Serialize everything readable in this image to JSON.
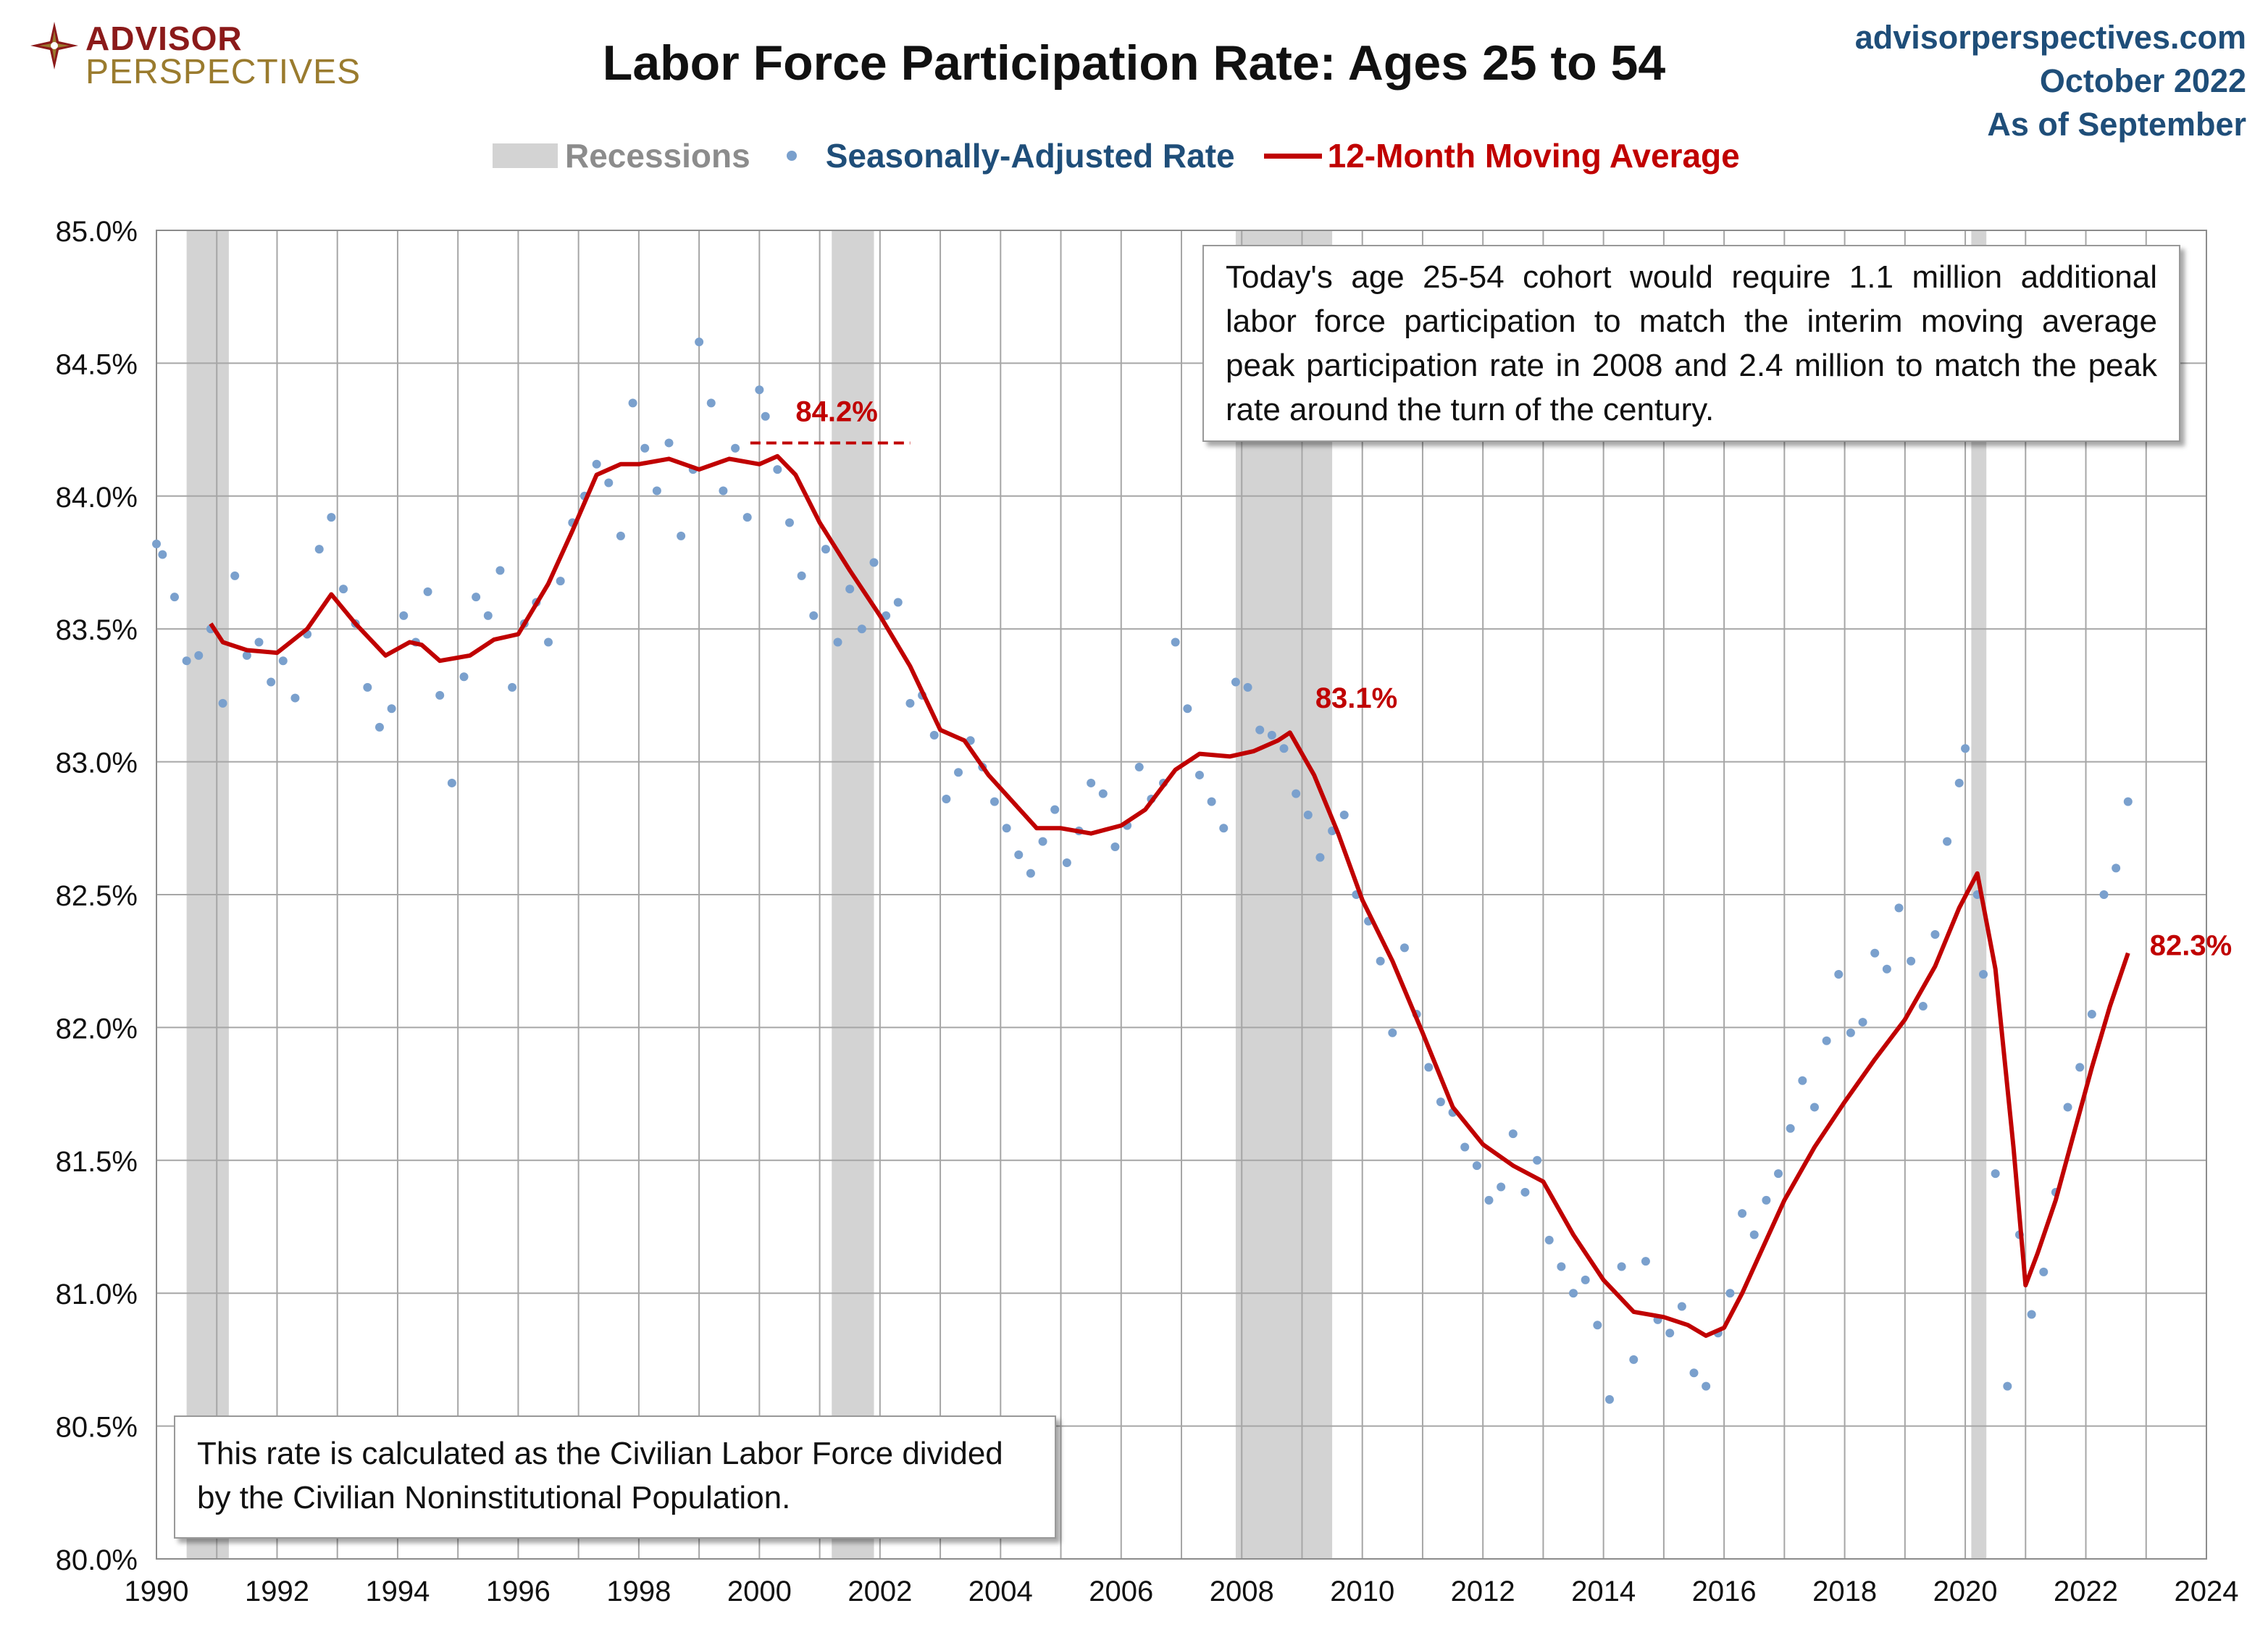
{
  "header": {
    "logo_top": "ADVISOR",
    "logo_bottom": "PERSPECTIVES",
    "title": "Labor Force Participation Rate: Ages 25 to 54",
    "source_line1": "advisorperspectives.com",
    "source_line2": "October 2022",
    "source_line3": "As of September"
  },
  "legend": {
    "recessions": "Recessions",
    "seasonal": "Seasonally-Adjusted Rate",
    "moving_avg": "12-Month Moving Average"
  },
  "notes": {
    "top_right": "Today's age 25-54 cohort would require 1.1 million additional labor force participation to match the interim moving average peak participation rate in 2008 and 2.4 million to match the peak rate around the turn of the century.",
    "bottom_left": "This rate is calculated as the Civilian Labor Force divided by the Civilian Noninstitutional Population."
  },
  "colors": {
    "recession": "#d3d3d3",
    "dots": "#7aa0cd",
    "moving_avg": "#c00000",
    "annotation": "#c00000",
    "grid": "#a6a6a6",
    "source": "#1f4e79"
  },
  "chart_data": {
    "type": "line",
    "title": "Labor Force Participation Rate: Ages 25 to 54",
    "xlim": [
      1990,
      2024
    ],
    "ylim": [
      80.0,
      85.0
    ],
    "x_ticks": [
      "1990",
      "1992",
      "1994",
      "1996",
      "1998",
      "2000",
      "2002",
      "2004",
      "2006",
      "2008",
      "2010",
      "2012",
      "2014",
      "2016",
      "2018",
      "2020",
      "2022",
      "2024"
    ],
    "y_ticks": [
      "80.0%",
      "80.5%",
      "81.0%",
      "81.5%",
      "82.0%",
      "82.5%",
      "83.0%",
      "83.5%",
      "84.0%",
      "84.5%",
      "85.0%"
    ],
    "recessions": [
      [
        1990.5,
        1991.2
      ],
      [
        2001.2,
        2001.9
      ],
      [
        2007.9,
        2009.5
      ],
      [
        2020.1,
        2020.35
      ]
    ],
    "series": [
      {
        "name": "12-Month Moving Average",
        "x": [
          1990.9,
          1991.1,
          1991.5,
          1992.0,
          1992.5,
          1992.9,
          1993.3,
          1993.8,
          1994.2,
          1994.4,
          1994.7,
          1995.2,
          1995.6,
          1996.0,
          1996.5,
          1996.9,
          1997.3,
          1997.7,
          1998.0,
          1998.5,
          1999.0,
          1999.5,
          2000.0,
          2000.3,
          2000.6,
          2001.0,
          2001.5,
          2002.0,
          2002.5,
          2003.0,
          2003.4,
          2003.8,
          2004.2,
          2004.6,
          2005.0,
          2005.5,
          2006.0,
          2006.4,
          2006.9,
          2007.3,
          2007.8,
          2008.2,
          2008.6,
          2008.8,
          2009.2,
          2009.6,
          2010.0,
          2010.5,
          2011.0,
          2011.5,
          2012.0,
          2012.5,
          2013.0,
          2013.5,
          2014.0,
          2014.5,
          2015.0,
          2015.4,
          2015.7,
          2016.0,
          2016.3,
          2016.7,
          2017.0,
          2017.5,
          2018.0,
          2018.5,
          2019.0,
          2019.5,
          2019.9,
          2020.2,
          2020.5,
          2020.8,
          2021.0,
          2021.2,
          2021.5,
          2021.8,
          2022.1,
          2022.4,
          2022.7
        ],
        "values": [
          83.52,
          83.45,
          83.42,
          83.41,
          83.5,
          83.63,
          83.52,
          83.4,
          83.45,
          83.44,
          83.38,
          83.4,
          83.46,
          83.48,
          83.67,
          83.87,
          84.08,
          84.12,
          84.12,
          84.14,
          84.1,
          84.14,
          84.12,
          84.15,
          84.08,
          83.9,
          83.72,
          83.55,
          83.36,
          83.12,
          83.08,
          82.95,
          82.85,
          82.75,
          82.75,
          82.73,
          82.76,
          82.82,
          82.97,
          83.03,
          83.02,
          83.04,
          83.08,
          83.11,
          82.95,
          82.73,
          82.48,
          82.25,
          81.98,
          81.7,
          81.56,
          81.48,
          81.42,
          81.22,
          81.05,
          80.93,
          80.91,
          80.88,
          80.84,
          80.87,
          81.0,
          81.2,
          81.35,
          81.55,
          81.72,
          81.88,
          82.03,
          82.23,
          82.45,
          82.58,
          82.22,
          81.55,
          81.03,
          81.15,
          81.35,
          81.6,
          81.85,
          82.08,
          82.28
        ]
      },
      {
        "name": "Seasonally-Adjusted Rate",
        "x": [
          1990.0,
          1990.1,
          1990.3,
          1990.5,
          1990.7,
          1990.9,
          1991.1,
          1991.3,
          1991.5,
          1991.7,
          1991.9,
          1992.1,
          1992.3,
          1992.5,
          1992.7,
          1992.9,
          1993.1,
          1993.3,
          1993.5,
          1993.7,
          1993.9,
          1994.1,
          1994.3,
          1994.5,
          1994.7,
          1994.9,
          1995.1,
          1995.3,
          1995.5,
          1995.7,
          1995.9,
          1996.1,
          1996.3,
          1996.5,
          1996.7,
          1996.9,
          1997.1,
          1997.3,
          1997.5,
          1997.7,
          1997.9,
          1998.1,
          1998.3,
          1998.5,
          1998.7,
          1998.9,
          1999.0,
          1999.2,
          1999.4,
          1999.6,
          1999.8,
          2000.0,
          2000.1,
          2000.3,
          2000.5,
          2000.7,
          2000.9,
          2001.1,
          2001.3,
          2001.5,
          2001.7,
          2001.9,
          2002.1,
          2002.3,
          2002.5,
          2002.7,
          2002.9,
          2003.1,
          2003.3,
          2003.5,
          2003.7,
          2003.9,
          2004.1,
          2004.3,
          2004.5,
          2004.7,
          2004.9,
          2005.1,
          2005.3,
          2005.5,
          2005.7,
          2005.9,
          2006.1,
          2006.3,
          2006.5,
          2006.7,
          2006.9,
          2007.1,
          2007.3,
          2007.5,
          2007.7,
          2007.9,
          2008.1,
          2008.3,
          2008.5,
          2008.7,
          2008.9,
          2009.1,
          2009.3,
          2009.5,
          2009.7,
          2009.9,
          2010.1,
          2010.3,
          2010.5,
          2010.7,
          2010.9,
          2011.1,
          2011.3,
          2011.5,
          2011.7,
          2011.9,
          2012.1,
          2012.3,
          2012.5,
          2012.7,
          2012.9,
          2013.1,
          2013.3,
          2013.5,
          2013.7,
          2013.9,
          2014.1,
          2014.3,
          2014.5,
          2014.7,
          2014.9,
          2015.1,
          2015.3,
          2015.5,
          2015.7,
          2015.9,
          2016.1,
          2016.3,
          2016.5,
          2016.7,
          2016.9,
          2017.1,
          2017.3,
          2017.5,
          2017.7,
          2017.9,
          2018.1,
          2018.3,
          2018.5,
          2018.7,
          2018.9,
          2019.1,
          2019.3,
          2019.5,
          2019.7,
          2019.9,
          2020.0,
          2020.2,
          2020.3,
          2020.5,
          2020.7,
          2020.9,
          2021.1,
          2021.3,
          2021.5,
          2021.7,
          2021.9,
          2022.1,
          2022.3,
          2022.5,
          2022.7
        ],
        "values": [
          83.82,
          83.78,
          83.62,
          83.38,
          83.4,
          83.5,
          83.22,
          83.7,
          83.4,
          83.45,
          83.3,
          83.38,
          83.24,
          83.48,
          83.8,
          83.92,
          83.65,
          83.52,
          83.28,
          83.13,
          83.2,
          83.55,
          83.45,
          83.64,
          83.25,
          82.92,
          83.32,
          83.62,
          83.55,
          83.72,
          83.28,
          83.52,
          83.6,
          83.45,
          83.68,
          83.9,
          84.0,
          84.12,
          84.05,
          83.85,
          84.35,
          84.18,
          84.02,
          84.2,
          83.85,
          84.1,
          84.58,
          84.35,
          84.02,
          84.18,
          83.92,
          84.4,
          84.3,
          84.1,
          83.9,
          83.7,
          83.55,
          83.8,
          83.45,
          83.65,
          83.5,
          83.75,
          83.55,
          83.6,
          83.22,
          83.25,
          83.1,
          82.86,
          82.96,
          83.08,
          82.98,
          82.85,
          82.75,
          82.65,
          82.58,
          82.7,
          82.82,
          82.62,
          82.74,
          82.92,
          82.88,
          82.68,
          82.76,
          82.98,
          82.86,
          82.92,
          83.45,
          83.2,
          82.95,
          82.85,
          82.75,
          83.3,
          83.28,
          83.12,
          83.1,
          83.05,
          82.88,
          82.8,
          82.64,
          82.74,
          82.8,
          82.5,
          82.4,
          82.25,
          81.98,
          82.3,
          82.05,
          81.85,
          81.72,
          81.68,
          81.55,
          81.48,
          81.35,
          81.4,
          81.6,
          81.38,
          81.5,
          81.2,
          81.1,
          81.0,
          81.05,
          80.88,
          80.6,
          81.1,
          80.75,
          81.12,
          80.9,
          80.85,
          80.95,
          80.7,
          80.65,
          80.85,
          81.0,
          81.3,
          81.22,
          81.35,
          81.45,
          81.62,
          81.8,
          81.7,
          81.95,
          82.2,
          81.98,
          82.02,
          82.28,
          82.22,
          82.45,
          82.25,
          82.08,
          82.35,
          82.7,
          82.92,
          83.05,
          82.5,
          82.2,
          81.45,
          80.65,
          81.22,
          80.92,
          81.08,
          81.38,
          81.7,
          81.85,
          82.05,
          82.5,
          82.6,
          82.85
        ]
      }
    ],
    "annotations": [
      {
        "label": "84.2%",
        "x": 2000.0,
        "y": 84.2
      },
      {
        "label": "83.1%",
        "x": 2008.8,
        "y": 83.1
      },
      {
        "label": "82.3%",
        "x": 2022.7,
        "y": 82.3
      }
    ]
  }
}
